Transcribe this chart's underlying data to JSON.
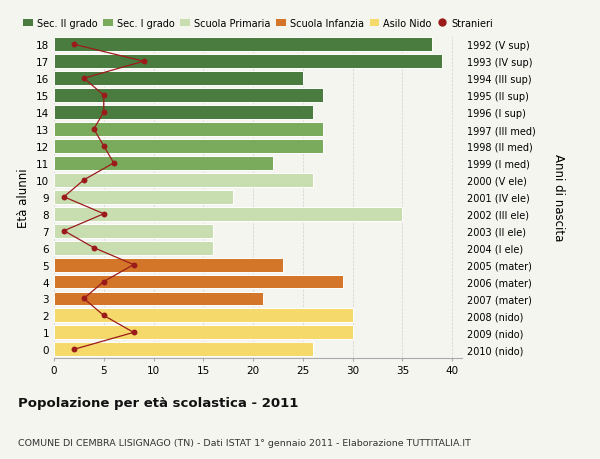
{
  "ages": [
    18,
    17,
    16,
    15,
    14,
    13,
    12,
    11,
    10,
    9,
    8,
    7,
    6,
    5,
    4,
    3,
    2,
    1,
    0
  ],
  "right_labels": [
    "1992 (V sup)",
    "1993 (IV sup)",
    "1994 (III sup)",
    "1995 (II sup)",
    "1996 (I sup)",
    "1997 (III med)",
    "1998 (II med)",
    "1999 (I med)",
    "2000 (V ele)",
    "2001 (IV ele)",
    "2002 (III ele)",
    "2003 (II ele)",
    "2004 (I ele)",
    "2005 (mater)",
    "2006 (mater)",
    "2007 (mater)",
    "2008 (nido)",
    "2009 (nido)",
    "2010 (nido)"
  ],
  "bar_values": [
    38,
    39,
    25,
    27,
    26,
    27,
    27,
    22,
    26,
    18,
    35,
    16,
    16,
    23,
    29,
    21,
    30,
    30,
    26
  ],
  "bar_colors": [
    "#4a7c3f",
    "#4a7c3f",
    "#4a7c3f",
    "#4a7c3f",
    "#4a7c3f",
    "#7aab5c",
    "#7aab5c",
    "#7aab5c",
    "#c8ddb0",
    "#c8ddb0",
    "#c8ddb0",
    "#c8ddb0",
    "#c8ddb0",
    "#d4762a",
    "#d4762a",
    "#d4762a",
    "#f5d96a",
    "#f5d96a",
    "#f5d96a"
  ],
  "stranieri_values": [
    2,
    9,
    3,
    5,
    5,
    4,
    5,
    6,
    3,
    1,
    5,
    1,
    4,
    8,
    5,
    3,
    5,
    8,
    2
  ],
  "stranieri_color": "#9b1b1b",
  "legend_labels": [
    "Sec. II grado",
    "Sec. I grado",
    "Scuola Primaria",
    "Scuola Infanzia",
    "Asilo Nido",
    "Stranieri"
  ],
  "legend_colors": [
    "#4a7c3f",
    "#7aab5c",
    "#c8ddb0",
    "#d4762a",
    "#f5d96a",
    "#9b1b1b"
  ],
  "ylabel_left": "Età alunni",
  "ylabel_right": "Anni di nascita",
  "title": "Popolazione per età scolastica - 2011",
  "subtitle": "COMUNE DI CEMBRA LISIGNAGO (TN) - Dati ISTAT 1° gennaio 2011 - Elaborazione TUTTITALIA.IT",
  "xlim": [
    0,
    41
  ],
  "bg_color": "#f5f5f0",
  "grid_color": "#cccccc"
}
